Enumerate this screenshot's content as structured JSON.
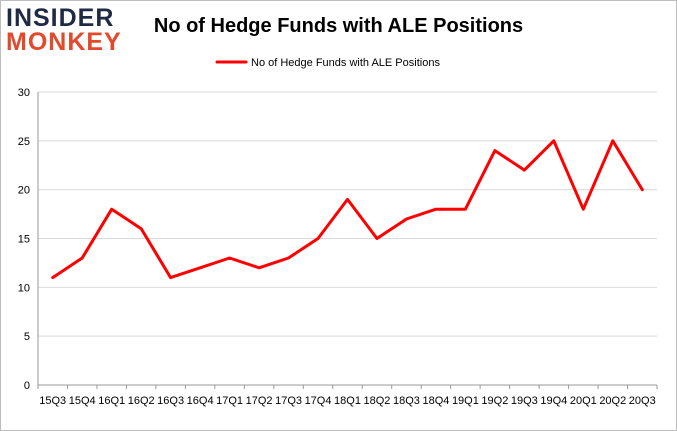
{
  "logo": {
    "line1": "INSIDER",
    "line2": "MONKEY"
  },
  "chart_data": {
    "type": "line",
    "title": "No of Hedge Funds with ALE Positions",
    "xlabel": "",
    "ylabel": "",
    "categories": [
      "15Q3",
      "15Q4",
      "16Q1",
      "16Q2",
      "16Q3",
      "16Q4",
      "17Q1",
      "17Q2",
      "17Q3",
      "17Q4",
      "18Q1",
      "18Q2",
      "18Q3",
      "18Q4",
      "19Q1",
      "19Q2",
      "19Q3",
      "19Q4",
      "20Q1",
      "20Q2",
      "20Q3"
    ],
    "series": [
      {
        "name": "No of Hedge Funds with ALE Positions",
        "values": [
          11,
          13,
          18,
          16,
          11,
          12,
          13,
          12,
          13,
          15,
          19,
          15,
          17,
          18,
          18,
          24,
          22,
          25,
          18,
          25,
          20
        ]
      }
    ],
    "ylim": [
      0,
      30
    ],
    "yticks": [
      0,
      5,
      10,
      15,
      20,
      25,
      30
    ],
    "grid": true,
    "legend_position": "top-center",
    "colors": {
      "line": "#ff0000",
      "grid": "#d9d9d9",
      "axis": "#999999"
    }
  }
}
